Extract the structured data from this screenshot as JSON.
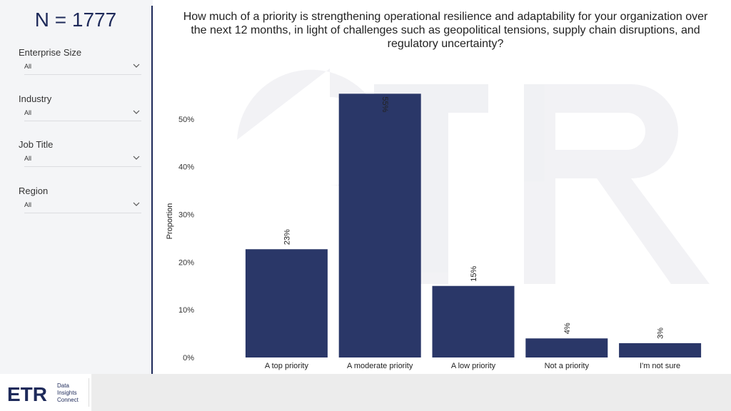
{
  "sidebar": {
    "n_label": "N = 1777",
    "filters": [
      {
        "label": "Enterprise Size",
        "value": "All"
      },
      {
        "label": "Industry",
        "value": "All"
      },
      {
        "label": "Job Title",
        "value": "All"
      },
      {
        "label": "Region",
        "value": "All"
      }
    ]
  },
  "logo": {
    "mark": "ETR",
    "line1": "Data",
    "line2": "Insights",
    "line3": "Connect"
  },
  "colors": {
    "bar": "#2a3768",
    "accent": "#1e2a5a"
  },
  "chart_data": {
    "type": "bar",
    "title": "How much of a priority is strengthening operational resilience and adaptability for your organization over the next 12 months, in light of challenges such as geopolitical tensions, supply chain disruptions, and regulatory uncertainty?",
    "categories": [
      "A top priority",
      "A moderate priority",
      "A low priority",
      "Not a priority",
      "I'm not sure"
    ],
    "values": [
      22.7,
      55.3,
      15.0,
      4.0,
      3.0
    ],
    "data_labels": [
      "23%",
      "55%",
      "15%",
      "4%",
      "3%"
    ],
    "ylabel": "Proportion",
    "ylim": [
      0,
      57
    ],
    "yticks": [
      0,
      10,
      20,
      30,
      40,
      50
    ],
    "ytick_labels": [
      "0%",
      "10%",
      "20%",
      "30%",
      "40%",
      "50%"
    ],
    "grid": false,
    "legend": "none"
  }
}
